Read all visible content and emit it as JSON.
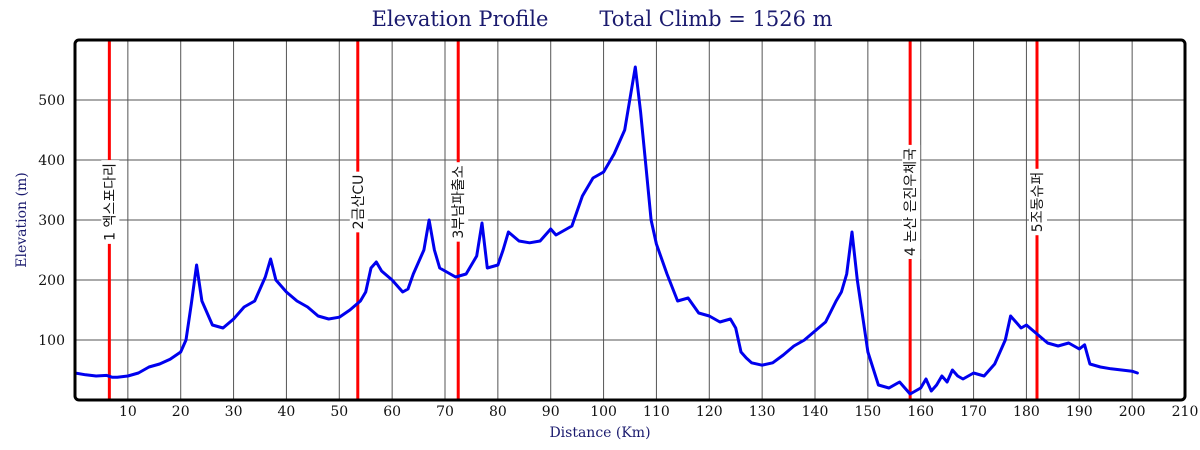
{
  "chart_data": {
    "type": "line",
    "title": "Elevation Profile",
    "subtitle": "Total Climb = 1526 m",
    "xlabel": "Distance (Km)",
    "ylabel": "Elevation (m)",
    "xlim": [
      0,
      210
    ],
    "ylim": [
      0,
      600
    ],
    "xticks": [
      10,
      20,
      30,
      40,
      50,
      60,
      70,
      80,
      90,
      100,
      110,
      120,
      130,
      140,
      150,
      160,
      170,
      180,
      190,
      200,
      210
    ],
    "yticks": [
      100,
      200,
      300,
      400,
      500
    ],
    "grid": true,
    "colors": {
      "line": "#0000ee",
      "checkpoint": "#ff0000",
      "frame": "#000000",
      "grid": "#555555"
    },
    "checkpoints": [
      {
        "x": 6.5,
        "label": "1 엑스포다리"
      },
      {
        "x": 53.5,
        "label": "2금산CU"
      },
      {
        "x": 72.5,
        "label": "3부남파출소"
      },
      {
        "x": 158,
        "label": "4 논산 은진우체국"
      },
      {
        "x": 182,
        "label": "5조동슈퍼"
      }
    ],
    "series": [
      {
        "x": [
          0,
          2,
          4,
          6,
          7,
          8,
          10,
          12,
          14,
          16,
          18,
          20,
          21,
          22,
          23,
          24,
          26,
          28,
          30,
          32,
          34,
          35,
          36,
          37,
          38,
          40,
          42,
          44,
          46,
          48,
          50,
          52,
          54,
          55,
          56,
          57,
          58,
          60,
          62,
          63,
          64,
          66,
          67,
          68,
          69,
          70,
          72,
          74,
          75,
          76,
          77,
          78,
          80,
          81,
          82,
          84,
          86,
          88,
          90,
          91,
          92,
          94,
          96,
          98,
          100,
          102,
          104,
          106,
          107,
          108,
          109,
          110,
          112,
          114,
          116,
          118,
          120,
          122,
          124,
          125,
          126,
          127,
          128,
          130,
          132,
          134,
          136,
          138,
          140,
          142,
          144,
          145,
          146,
          147,
          148,
          149,
          150,
          152,
          154,
          156,
          158,
          160,
          161,
          162,
          163,
          164,
          165,
          166,
          167,
          168,
          170,
          172,
          174,
          175,
          176,
          177,
          178,
          179,
          180,
          182,
          184,
          186,
          188,
          190,
          191,
          192,
          194,
          196,
          198,
          200,
          201
        ],
        "y": [
          45,
          42,
          40,
          41,
          38,
          38,
          40,
          45,
          55,
          60,
          68,
          80,
          100,
          160,
          225,
          165,
          125,
          120,
          135,
          155,
          165,
          185,
          205,
          235,
          200,
          180,
          165,
          155,
          140,
          135,
          138,
          150,
          165,
          180,
          220,
          230,
          215,
          200,
          180,
          185,
          210,
          250,
          300,
          250,
          220,
          215,
          205,
          210,
          225,
          240,
          295,
          220,
          225,
          250,
          280,
          265,
          262,
          265,
          285,
          275,
          280,
          290,
          340,
          370,
          380,
          410,
          450,
          555,
          480,
          390,
          300,
          260,
          210,
          165,
          170,
          145,
          140,
          130,
          135,
          120,
          80,
          70,
          62,
          58,
          62,
          75,
          90,
          100,
          115,
          130,
          165,
          180,
          210,
          280,
          200,
          140,
          80,
          25,
          20,
          30,
          10,
          20,
          35,
          15,
          25,
          40,
          30,
          50,
          40,
          35,
          45,
          40,
          60,
          80,
          100,
          140,
          130,
          120,
          125,
          110,
          95,
          90,
          95,
          85,
          92,
          60,
          55,
          52,
          50,
          48,
          45
        ]
      }
    ]
  }
}
